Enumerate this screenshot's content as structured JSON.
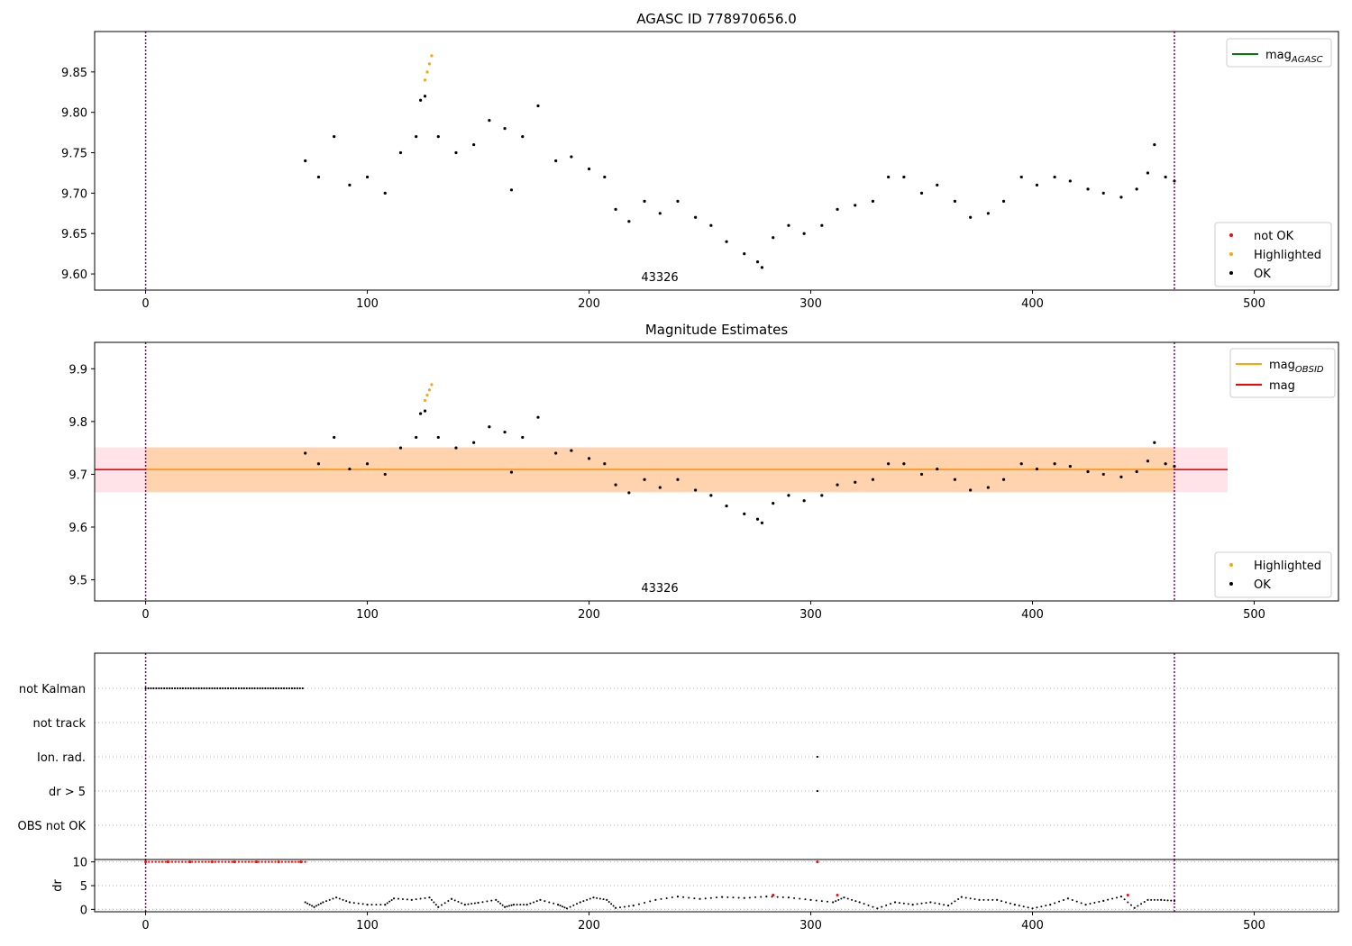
{
  "chart_data": [
    {
      "type": "scatter",
      "title": "AGASC ID 778970656.0",
      "annotation": "43326",
      "xlim": [
        -23,
        538
      ],
      "ylim": [
        9.58,
        9.9
      ],
      "xticks": [
        "0",
        "100",
        "200",
        "300",
        "400",
        "500"
      ],
      "xtick_values": [
        0,
        100,
        200,
        300,
        400,
        500
      ],
      "yticks": [
        "9.60",
        "9.65",
        "9.70",
        "9.75",
        "9.80",
        "9.85"
      ],
      "ytick_values": [
        9.6,
        9.65,
        9.7,
        9.75,
        9.8,
        9.85
      ],
      "vlines": [
        0,
        464
      ],
      "legend_lines": [
        {
          "label": "mag",
          "sub": "AGASC",
          "color": "#008000"
        }
      ],
      "legend_points": [
        {
          "label": "not OK",
          "color": "#ff0000"
        },
        {
          "label": "Highlighted",
          "color": "#ffa500"
        },
        {
          "label": "OK",
          "color": "#000000"
        }
      ],
      "series": [
        {
          "name": "Highlighted",
          "color": "#ffa500",
          "x": [
            126,
            127,
            128,
            129
          ],
          "y": [
            9.84,
            9.85,
            9.86,
            9.87
          ]
        },
        {
          "name": "OK",
          "color": "#000000",
          "x": [
            72,
            78,
            85,
            92,
            100,
            108,
            115,
            122,
            124,
            126,
            132,
            140,
            148,
            155,
            162,
            165,
            170,
            177,
            185,
            192,
            200,
            207,
            212,
            218,
            225,
            232,
            240,
            248,
            255,
            262,
            270,
            276,
            278,
            283,
            290,
            297,
            305,
            312,
            320,
            328,
            335,
            342,
            350,
            357,
            365,
            372,
            380,
            387,
            395,
            402,
            410,
            417,
            425,
            432,
            440,
            447,
            452,
            455,
            460,
            464
          ],
          "y": [
            9.74,
            9.72,
            9.77,
            9.71,
            9.72,
            9.7,
            9.75,
            9.77,
            9.815,
            9.82,
            9.77,
            9.75,
            9.76,
            9.79,
            9.78,
            9.704,
            9.77,
            9.808,
            9.74,
            9.745,
            9.73,
            9.72,
            9.68,
            9.665,
            9.69,
            9.675,
            9.69,
            9.67,
            9.66,
            9.64,
            9.625,
            9.615,
            9.608,
            9.645,
            9.66,
            9.65,
            9.66,
            9.68,
            9.685,
            9.69,
            9.72,
            9.72,
            9.7,
            9.71,
            9.69,
            9.67,
            9.675,
            9.69,
            9.72,
            9.71,
            9.72,
            9.715,
            9.705,
            9.7,
            9.695,
            9.705,
            9.725,
            9.76,
            9.72,
            9.715
          ]
        }
      ]
    },
    {
      "type": "scatter",
      "title": "Magnitude Estimates",
      "annotation": "43326",
      "xlim": [
        -23,
        538
      ],
      "ylim": [
        9.46,
        9.95
      ],
      "xticks": [
        "0",
        "100",
        "200",
        "300",
        "400",
        "500"
      ],
      "xtick_values": [
        0,
        100,
        200,
        300,
        400,
        500
      ],
      "yticks": [
        "9.5",
        "9.6",
        "9.7",
        "9.8",
        "9.9"
      ],
      "ytick_values": [
        9.5,
        9.6,
        9.7,
        9.8,
        9.9
      ],
      "vlines": [
        0,
        464
      ],
      "bands": [
        {
          "x": [
            -23,
            488
          ],
          "y": [
            9.666,
            9.751
          ],
          "color": "#ffc0cb"
        },
        {
          "x": [
            0,
            464
          ],
          "y": [
            9.666,
            9.751
          ],
          "color": "#ffa500"
        }
      ],
      "hlines": [
        {
          "y": 9.709,
          "x": [
            -23,
            488
          ],
          "color": "#ff0000"
        },
        {
          "y": 9.709,
          "x": [
            0,
            464
          ],
          "color": "#ffa500"
        }
      ],
      "legend_lines": [
        {
          "label": "mag",
          "sub": "OBSID",
          "color": "#ffa500"
        },
        {
          "label": "mag",
          "sub": "",
          "color": "#ff0000"
        }
      ],
      "legend_points": [
        {
          "label": "Highlighted",
          "color": "#ffa500"
        },
        {
          "label": "OK",
          "color": "#000000"
        }
      ],
      "series": [
        {
          "name": "Highlighted",
          "color": "#ffa500",
          "x": [
            126,
            127,
            128,
            129
          ],
          "y": [
            9.84,
            9.85,
            9.86,
            9.87
          ]
        },
        {
          "name": "OK",
          "color": "#000000",
          "x": [
            72,
            78,
            85,
            92,
            100,
            108,
            115,
            122,
            124,
            126,
            132,
            140,
            148,
            155,
            162,
            165,
            170,
            177,
            185,
            192,
            200,
            207,
            212,
            218,
            225,
            232,
            240,
            248,
            255,
            262,
            270,
            276,
            278,
            283,
            290,
            297,
            305,
            312,
            320,
            328,
            335,
            342,
            350,
            357,
            365,
            372,
            380,
            387,
            395,
            402,
            410,
            417,
            425,
            432,
            440,
            447,
            452,
            455,
            460,
            464
          ],
          "y": [
            9.74,
            9.72,
            9.77,
            9.71,
            9.72,
            9.7,
            9.75,
            9.77,
            9.815,
            9.82,
            9.77,
            9.75,
            9.76,
            9.79,
            9.78,
            9.704,
            9.77,
            9.808,
            9.74,
            9.745,
            9.73,
            9.72,
            9.68,
            9.665,
            9.69,
            9.675,
            9.69,
            9.67,
            9.66,
            9.64,
            9.625,
            9.615,
            9.608,
            9.645,
            9.66,
            9.65,
            9.66,
            9.68,
            9.685,
            9.69,
            9.72,
            9.72,
            9.7,
            9.71,
            9.69,
            9.67,
            9.675,
            9.69,
            9.72,
            9.71,
            9.72,
            9.715,
            9.705,
            9.7,
            9.695,
            9.705,
            9.725,
            9.76,
            9.72,
            9.715
          ]
        }
      ]
    },
    {
      "type": "scatter",
      "title": "",
      "xlim": [
        -23,
        538
      ],
      "categories": [
        "not Kalman",
        "not track",
        "Ion. rad.",
        "dr > 5",
        "OBS not OK"
      ],
      "vlines": [
        0,
        464
      ],
      "flags": [
        {
          "category": "not Kalman",
          "x_ranges": [
            [
              0,
              72
            ]
          ],
          "color": "#000000"
        },
        {
          "category": "Ion. rad.",
          "x_points": [
            303
          ],
          "color": "#000000"
        },
        {
          "category": "dr > 5",
          "x_points": [
            303
          ],
          "color": "#000000"
        }
      ]
    },
    {
      "type": "scatter",
      "title": "",
      "ylabel": "dr",
      "xlim": [
        -23,
        538
      ],
      "ylim": [
        -0.5,
        10.5
      ],
      "xticks": [
        "0",
        "100",
        "200",
        "300",
        "400",
        "500"
      ],
      "xtick_values": [
        0,
        100,
        200,
        300,
        400,
        500
      ],
      "yticks": [
        "0",
        "5",
        "10"
      ],
      "ytick_values": [
        0,
        5,
        10
      ],
      "vlines": [
        0,
        464
      ],
      "series": [
        {
          "name": "not OK",
          "color": "#ff0000",
          "x": [
            0,
            10,
            20,
            30,
            40,
            50,
            60,
            70,
            283,
            303,
            312,
            443
          ],
          "y": [
            10,
            10,
            10,
            10,
            10,
            10,
            10,
            10,
            3,
            10,
            3,
            3
          ]
        },
        {
          "name": "OK",
          "color": "#000000",
          "x": [
            72,
            76,
            80,
            86,
            92,
            100,
            108,
            112,
            120,
            128,
            132,
            138,
            144,
            150,
            158,
            162,
            166,
            172,
            178,
            186,
            190,
            196,
            202,
            208,
            212,
            220,
            230,
            240,
            250,
            260,
            270,
            280,
            290,
            300,
            310,
            315,
            322,
            330,
            338,
            346,
            354,
            362,
            368,
            376,
            384,
            392,
            400,
            408,
            416,
            424,
            432,
            440,
            446,
            452,
            458,
            464
          ],
          "y": [
            1.5,
            0.5,
            1.5,
            2.5,
            1.5,
            1.0,
            1.0,
            2.3,
            2.0,
            2.5,
            0.5,
            2.2,
            1.0,
            1.4,
            2.0,
            0.5,
            1.0,
            1.0,
            2.0,
            1.0,
            0.2,
            1.5,
            2.5,
            2.0,
            0.3,
            0.8,
            2.0,
            2.7,
            2.2,
            2.6,
            2.4,
            2.7,
            2.5,
            2.0,
            1.5,
            2.5,
            1.5,
            0.2,
            1.5,
            1.0,
            1.5,
            0.8,
            2.6,
            2.0,
            2.0,
            1.0,
            0.2,
            1.0,
            2.3,
            1.0,
            1.8,
            2.7,
            0.3,
            2.0,
            2.0,
            1.8
          ]
        }
      ]
    }
  ]
}
